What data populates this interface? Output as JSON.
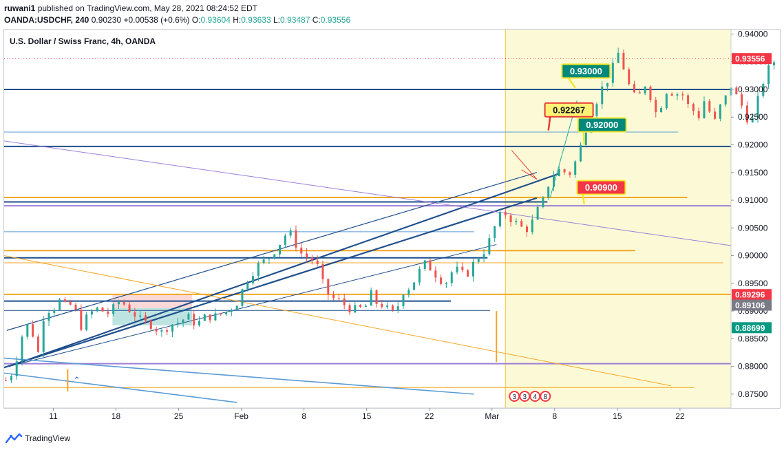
{
  "header": {
    "user": "ruwani1",
    "published_text": "published on TradingView.com, May 28, 2021 08:24:52 EDT",
    "symbol_line": "OANDA:USDCHF, 240",
    "price": "0.90230",
    "change": "+0.00538 (+0.6%)",
    "o_label": "O:",
    "o_value": "0.93604",
    "h_label": "H:",
    "h_value": "0.93633",
    "l_label": "L:",
    "l_value": "0.93487",
    "c_label": "C:",
    "c_value": "0.93556"
  },
  "footer": {
    "brand": "TradingView",
    "logo_icon": "tradingview-logo-icon"
  },
  "colors": {
    "up": "#26a69a",
    "down": "#ef5350",
    "navy": "#1f4e8c",
    "orange": "#f5a623",
    "purple": "#9c7fd6",
    "steel": "#5b9bd5",
    "shade": "#fcfad6",
    "price_tag": "#f23645"
  },
  "chart_data": {
    "type": "candlestick",
    "title": "U.S. Dollar / Swiss Franc, 4h, OANDA",
    "ylim": [
      0.8725,
      0.9408
    ],
    "y_ticks": [
      "0.94000",
      "0.93500",
      "0.93000",
      "0.92500",
      "0.92000",
      "0.91500",
      "0.91000",
      "0.90500",
      "0.90000",
      "0.89500",
      "0.89000",
      "0.88500",
      "0.88000",
      "0.87500"
    ],
    "x_ticks": [
      "11",
      "18",
      "25",
      "Feb",
      "8",
      "15",
      "22",
      "Mar",
      "8",
      "15",
      "22"
    ],
    "x_tick_days": [
      11,
      18,
      25,
      32,
      39,
      46,
      53,
      60,
      67,
      74,
      81
    ],
    "x_range_days": [
      5.5,
      86.7
    ],
    "grid": false,
    "price_path": [
      [
        5.7,
        0.8775
      ],
      [
        6.5,
        0.879
      ],
      [
        7.5,
        0.8855
      ],
      [
        8.3,
        0.888
      ],
      [
        9.3,
        0.8825
      ],
      [
        10.0,
        0.89
      ],
      [
        11.0,
        0.8905
      ],
      [
        11.8,
        0.892
      ],
      [
        12.5,
        0.8905
      ],
      [
        13.2,
        0.8915
      ],
      [
        14.0,
        0.887
      ],
      [
        15.0,
        0.8895
      ],
      [
        16.0,
        0.8905
      ],
      [
        17.0,
        0.8895
      ],
      [
        17.7,
        0.8905
      ],
      [
        18.5,
        0.892
      ],
      [
        19.3,
        0.8905
      ],
      [
        20.0,
        0.8895
      ],
      [
        21.0,
        0.888
      ],
      [
        22.0,
        0.8875
      ],
      [
        23.0,
        0.886
      ],
      [
        24.0,
        0.8875
      ],
      [
        25.0,
        0.888
      ],
      [
        26.0,
        0.889
      ],
      [
        27.0,
        0.8875
      ],
      [
        28.0,
        0.889
      ],
      [
        29.0,
        0.889
      ],
      [
        29.8,
        0.8895
      ],
      [
        30.5,
        0.89
      ],
      [
        31.5,
        0.8915
      ],
      [
        32.3,
        0.8945
      ],
      [
        33.0,
        0.8965
      ],
      [
        34.0,
        0.8985
      ],
      [
        35.0,
        0.8995
      ],
      [
        36.0,
        0.9015
      ],
      [
        36.8,
        0.9035
      ],
      [
        37.3,
        0.9045
      ],
      [
        37.8,
        0.903
      ],
      [
        38.6,
        0.9005
      ],
      [
        39.5,
        0.8995
      ],
      [
        40.3,
        0.899
      ],
      [
        41.2,
        0.8945
      ],
      [
        41.9,
        0.8925
      ],
      [
        43.0,
        0.8918
      ],
      [
        44.0,
        0.8905
      ],
      [
        45.0,
        0.8902
      ],
      [
        46.0,
        0.891
      ],
      [
        46.5,
        0.893
      ],
      [
        47.0,
        0.8915
      ],
      [
        48.0,
        0.891
      ],
      [
        48.7,
        0.8895
      ],
      [
        49.3,
        0.89
      ],
      [
        50.0,
        0.8935
      ],
      [
        51.0,
        0.8945
      ],
      [
        51.8,
        0.897
      ],
      [
        52.5,
        0.8985
      ],
      [
        53.3,
        0.8975
      ],
      [
        54.0,
        0.896
      ],
      [
        54.8,
        0.895
      ],
      [
        55.5,
        0.897
      ],
      [
        56.3,
        0.8975
      ],
      [
        57.0,
        0.896
      ],
      [
        57.5,
        0.8975
      ],
      [
        58.3,
        0.8995
      ],
      [
        59.0,
        0.9005
      ],
      [
        59.8,
        0.903
      ],
      [
        60.5,
        0.906
      ],
      [
        61.2,
        0.908
      ],
      [
        61.7,
        0.9072
      ],
      [
        62.2,
        0.9065
      ],
      [
        63.0,
        0.9055
      ],
      [
        63.7,
        0.9045
      ],
      [
        64.3,
        0.9055
      ],
      [
        64.8,
        0.907
      ],
      [
        65.3,
        0.909
      ],
      [
        65.8,
        0.91
      ],
      [
        66.2,
        0.9125
      ],
      [
        66.8,
        0.9145
      ],
      [
        67.3,
        0.915
      ],
      [
        67.8,
        0.916
      ],
      [
        68.3,
        0.9145
      ],
      [
        68.8,
        0.915
      ],
      [
        69.2,
        0.9165
      ],
      [
        69.7,
        0.9185
      ],
      [
        70.2,
        0.9215
      ],
      [
        70.7,
        0.924
      ],
      [
        71.2,
        0.9265
      ],
      [
        71.7,
        0.928
      ],
      [
        72.2,
        0.93
      ],
      [
        72.8,
        0.9315
      ],
      [
        73.3,
        0.9325
      ],
      [
        73.7,
        0.9355
      ],
      [
        74.0,
        0.9368
      ],
      [
        74.5,
        0.9352
      ],
      [
        75.0,
        0.932
      ],
      [
        75.6,
        0.9295
      ],
      [
        76.2,
        0.928
      ],
      [
        76.8,
        0.93
      ],
      [
        77.3,
        0.9315
      ],
      [
        77.9,
        0.9275
      ],
      [
        78.5,
        0.925
      ],
      [
        79.2,
        0.929
      ],
      [
        79.8,
        0.9305
      ],
      [
        80.4,
        0.9285
      ],
      [
        81.0,
        0.93
      ],
      [
        81.6,
        0.928
      ],
      [
        82.1,
        0.9265
      ],
      [
        82.7,
        0.926
      ],
      [
        83.2,
        0.925
      ],
      [
        83.8,
        0.9285
      ],
      [
        84.4,
        0.9255
      ],
      [
        85.0,
        0.924
      ],
      [
        85.6,
        0.9275
      ],
      [
        86.1,
        0.9285
      ],
      [
        86.6,
        0.931
      ],
      [
        87.2,
        0.929
      ],
      [
        87.8,
        0.9275
      ],
      [
        88.4,
        0.925
      ],
      [
        89.0,
        0.924
      ],
      [
        89.6,
        0.9275
      ],
      [
        90.2,
        0.931
      ],
      [
        90.8,
        0.9335
      ],
      [
        91.3,
        0.9345
      ],
      [
        91.7,
        0.9356
      ]
    ],
    "last_price": 0.93556,
    "shaded_region": {
      "from_day": 61.5,
      "to_day": 86.7
    },
    "horizontal_lines": [
      {
        "y": 0.93,
        "color": "navy",
        "width": 2,
        "from_day": 5.5,
        "to_day": 86.7
      },
      {
        "y": 0.9197,
        "color": "navy",
        "width": 2,
        "from_day": 5.5,
        "to_day": 86.7
      },
      {
        "y": 0.9223,
        "color": "steel",
        "width": 1,
        "from_day": 5.5,
        "to_day": 80.8
      },
      {
        "y": 0.9105,
        "color": "orange",
        "width": 2,
        "from_day": 5.5,
        "to_day": 81.8
      },
      {
        "y": 0.9097,
        "color": "navy",
        "width": 2,
        "from_day": 5.5,
        "to_day": 66.2
      },
      {
        "y": 0.909,
        "color": "purple",
        "width": 2,
        "from_day": 5.5,
        "to_day": 86.7
      },
      {
        "y": 0.9043,
        "color": "steel",
        "width": 1,
        "from_day": 5.5,
        "to_day": 58.0
      },
      {
        "y": 0.9009,
        "color": "orange",
        "width": 2,
        "from_day": 5.5,
        "to_day": 76.0
      },
      {
        "y": 0.8996,
        "color": "navy",
        "width": 2,
        "from_day": 5.5,
        "to_day": 59.5
      },
      {
        "y": 0.8987,
        "color": "orange",
        "width": 1,
        "from_day": 5.5,
        "to_day": 85.8
      },
      {
        "y": 0.893,
        "color": "orange",
        "width": 2,
        "from_day": 5.5,
        "to_day": 86.7
      },
      {
        "y": 0.8918,
        "color": "navy",
        "width": 2,
        "from_day": 5.5,
        "to_day": 55.4
      },
      {
        "y": 0.8901,
        "color": "navy",
        "width": 1,
        "from_day": 5.5,
        "to_day": 59.8
      },
      {
        "y": 0.8805,
        "color": "purple",
        "width": 2,
        "from_day": 5.5,
        "to_day": 86.7
      },
      {
        "y": 0.8762,
        "color": "orange",
        "width": 1,
        "from_day": 5.5,
        "to_day": 82.6
      }
    ],
    "trend_lines": [
      {
        "from": [
          5.8,
          0.8865
        ],
        "to": [
          65.0,
          0.915
        ],
        "color": "navy",
        "width": 1.2
      },
      {
        "from": [
          5.5,
          0.8798
        ],
        "to": [
          65.0,
          0.9104
        ],
        "color": "navy",
        "width": 2.2
      },
      {
        "from": [
          6.0,
          0.88
        ],
        "to": [
          67.5,
          0.9148
        ],
        "color": "navy",
        "width": 2.2
      },
      {
        "from": [
          6.0,
          0.88
        ],
        "to": [
          60.5,
          0.902
        ],
        "color": "navy",
        "width": 1
      },
      {
        "from": [
          5.5,
          0.9207
        ],
        "to": [
          86.7,
          0.9018
        ],
        "color": "purple",
        "width": 1
      },
      {
        "from": [
          5.5,
          0.9
        ],
        "to": [
          80.0,
          0.8765
        ],
        "color": "orange",
        "width": 1
      },
      {
        "from": [
          5.5,
          0.8815
        ],
        "to": [
          58.0,
          0.875
        ],
        "color": "steel",
        "width": 1.6
      },
      {
        "from": [
          5.5,
          0.8788
        ],
        "to": [
          31.5,
          0.8735
        ],
        "color": "steel",
        "width": 1.6
      },
      {
        "from": [
          66.5,
          0.9105
        ],
        "to": [
          69.5,
          0.928
        ],
        "color": "up",
        "width": 1
      }
    ],
    "callouts": [
      {
        "label": "0.93000",
        "day": 70.5,
        "y": 0.9333,
        "bg": "#00897b",
        "fg": "#ffffff",
        "border": "#f5e625",
        "target": [
          69.3,
          0.9303
        ]
      },
      {
        "label": "0.92267",
        "day": 68.6,
        "y": 0.9263,
        "bg": "#fff176",
        "fg": "#131722",
        "border": "#e53935",
        "target": [
          66.3,
          0.9226
        ]
      },
      {
        "label": "0.92000",
        "day": 72.3,
        "y": 0.9236,
        "bg": "#00897b",
        "fg": "#ffffff",
        "border": "#f5e625",
        "target": [
          70.3,
          0.92
        ]
      },
      {
        "label": "0.90900",
        "day": 72.2,
        "y": 0.9123,
        "bg": "#f23645",
        "fg": "#ffffff",
        "border": "#f5e625",
        "target": [
          70.3,
          0.9093
        ]
      }
    ],
    "price_tags": [
      {
        "label": "0.93556",
        "y": 0.93556,
        "bg": "#f23645",
        "fg": "#ffffff"
      },
      {
        "label": "0.89296",
        "y": 0.89296,
        "bg": "#f23645",
        "fg": "#ffffff"
      },
      {
        "label": "0.89106",
        "y": 0.89106,
        "bg": "#787b86",
        "fg": "#ffffff"
      },
      {
        "label": "0.88699",
        "y": 0.88699,
        "bg": "#089981",
        "fg": "#ffffff"
      }
    ],
    "event_markers": [
      "3",
      "3",
      "4",
      "8"
    ]
  }
}
